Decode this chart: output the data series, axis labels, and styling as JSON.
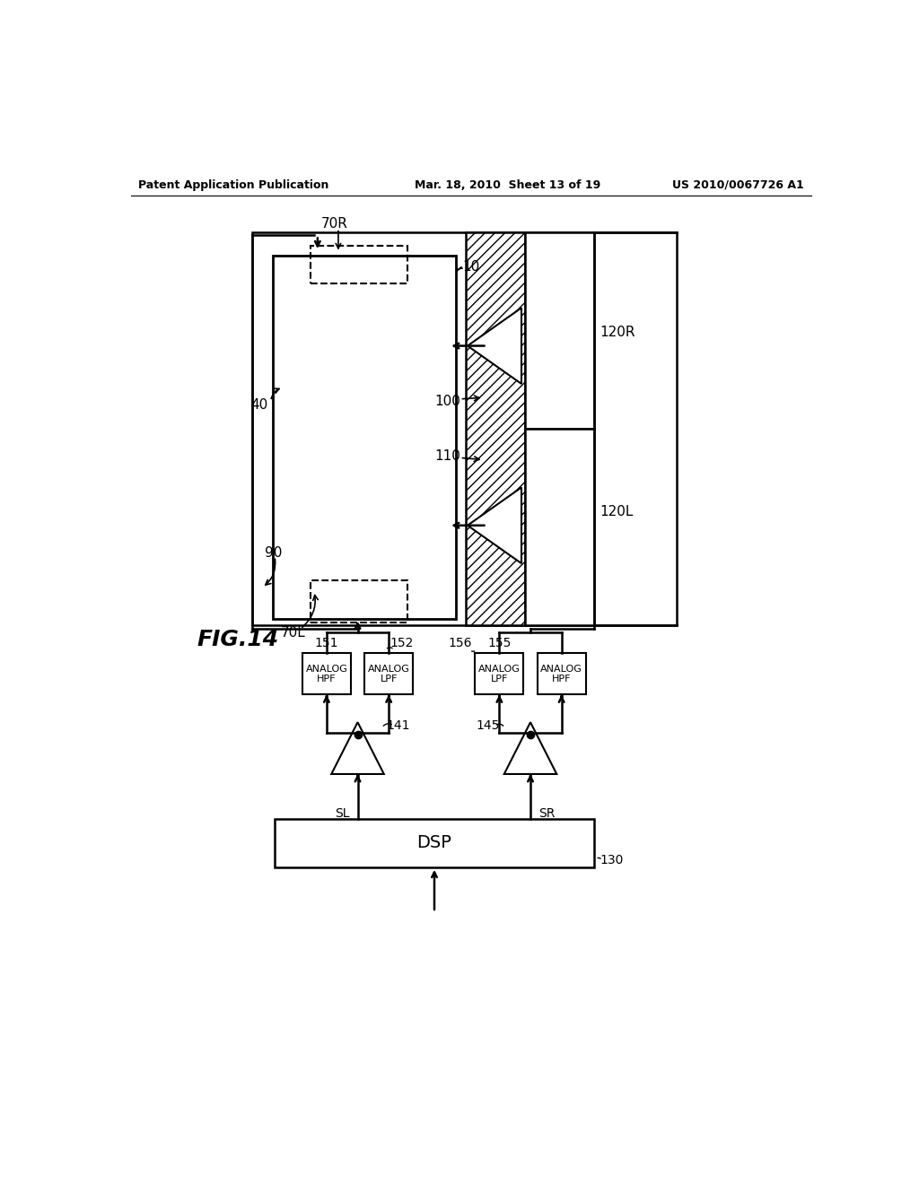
{
  "title_left": "Patent Application Publication",
  "title_center": "Mar. 18, 2010  Sheet 13 of 19",
  "title_right": "US 2010/0067726 A1",
  "fig_label": "FIG.14",
  "background_color": "#ffffff",
  "line_color": "#000000"
}
